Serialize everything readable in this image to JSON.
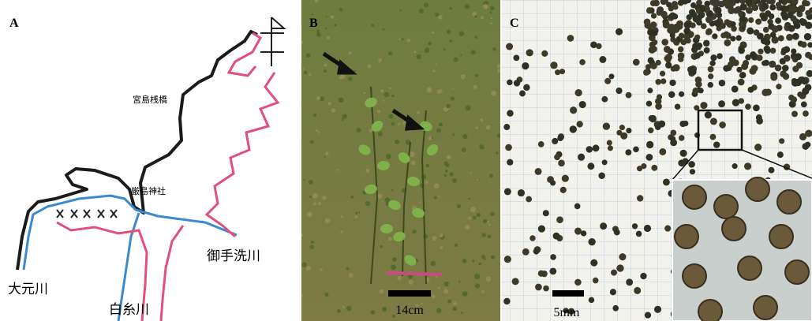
{
  "panels": [
    {
      "label": "A",
      "places": [
        "宮島桟橋",
        "厳島神社"
      ],
      "rivers": [
        "御手洗川",
        "大元川",
        "白糸川"
      ]
    },
    {
      "label": "B",
      "scale": "14cm"
    },
    {
      "label": "C",
      "scale": "5mm"
    }
  ]
}
